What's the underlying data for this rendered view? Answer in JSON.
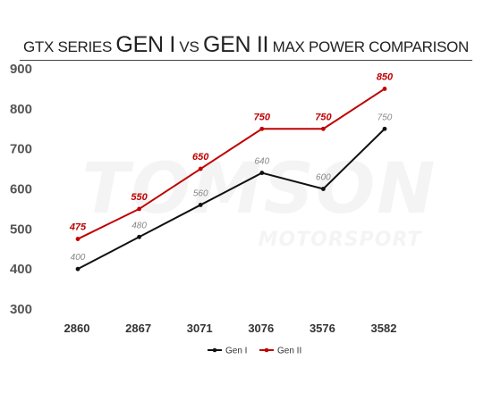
{
  "chart_data": {
    "type": "line",
    "title_parts": [
      {
        "text": "GTX SERIES ",
        "size": "sm"
      },
      {
        "text": "GEN I",
        "size": "lg"
      },
      {
        "text": " VS ",
        "size": "sm"
      },
      {
        "text": "GEN II",
        "size": "lg"
      },
      {
        "text": " MAX POWER COMPARISON",
        "size": "sm"
      }
    ],
    "watermark": [
      "TOMSON",
      "MOTORSPORT"
    ],
    "categories": [
      "2860",
      "2867",
      "3071",
      "3076",
      "3576",
      "3582"
    ],
    "yticks": [
      300,
      400,
      500,
      600,
      700,
      800,
      900
    ],
    "ylim": [
      300,
      900
    ],
    "grid": false,
    "legend_position": "bottom",
    "series": [
      {
        "name": "Gen I",
        "values": [
          400,
          480,
          560,
          640,
          600,
          750
        ],
        "color": "#111111"
      },
      {
        "name": "Gen II",
        "values": [
          475,
          550,
          650,
          750,
          750,
          850
        ],
        "color": "#c00000"
      }
    ]
  }
}
